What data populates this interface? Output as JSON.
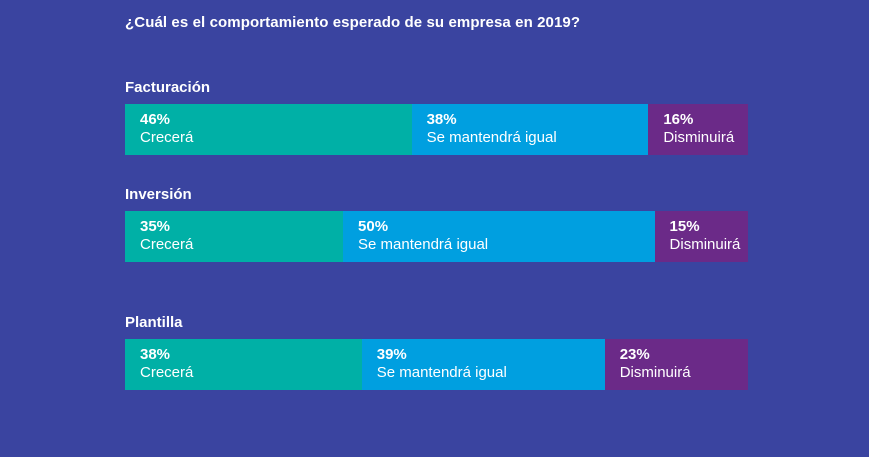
{
  "chart_data": {
    "type": "bar",
    "orientation": "horizontal",
    "stacked": "100%",
    "title": "¿Cuál es el comportamiento esperado de su empresa en 2019?",
    "categories": [
      "Facturación",
      "Inversión",
      "Plantilla"
    ],
    "series": [
      {
        "name": "Crecerá",
        "color": "#00b0a6",
        "values": [
          46,
          35,
          38
        ],
        "labels": [
          "46%",
          "35%",
          "38%"
        ]
      },
      {
        "name": "Se mantendrá igual",
        "color": "#009fe0",
        "values": [
          38,
          50,
          39
        ],
        "labels": [
          "38%",
          "50%",
          "39%"
        ]
      },
      {
        "name": "Disminuirá",
        "color": "#6b2a88",
        "values": [
          16,
          15,
          23
        ],
        "labels": [
          "16%",
          "15%",
          "23%"
        ]
      }
    ],
    "xlim": [
      0,
      100
    ],
    "grid": false,
    "legend": "none"
  },
  "colors": {
    "background": "#3a44a0",
    "text": "#ffffff"
  }
}
